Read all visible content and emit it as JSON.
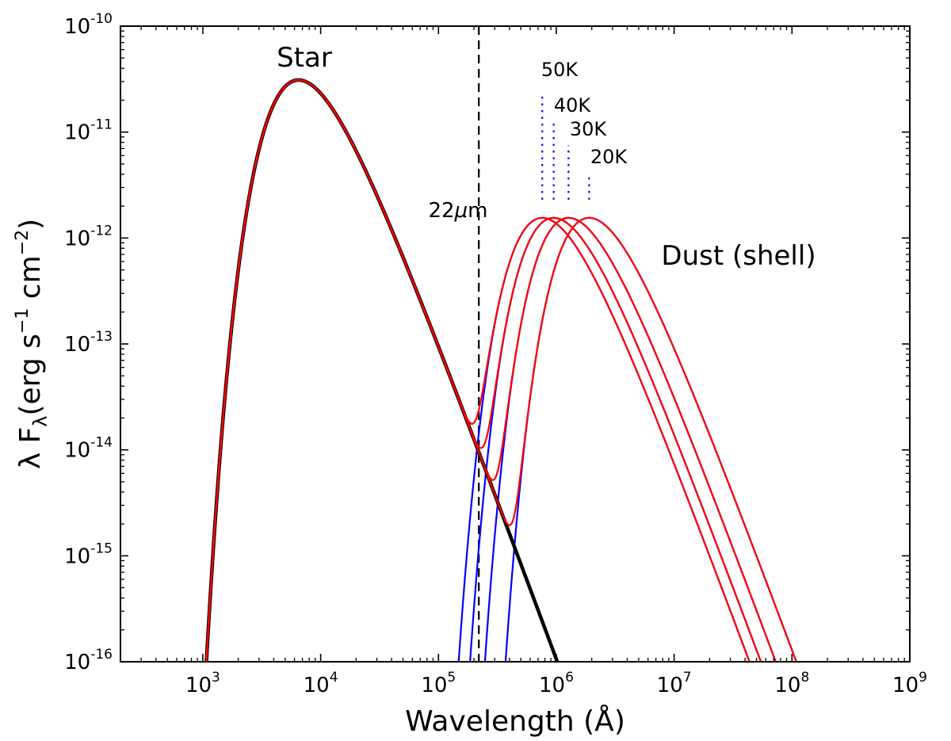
{
  "chart_data": {
    "type": "line",
    "title": "",
    "xlabel": "Wavelength (Å)",
    "ylabel": "λ F",
    "ylabel_sub": "λ",
    "ylabel_units": "(erg s",
    "ylabel_units_exp1": "−1",
    "ylabel_units_mid": " cm",
    "ylabel_units_exp2": "−2",
    "ylabel_units_end": ")",
    "xscale": "log",
    "yscale": "log",
    "xlim": [
      200,
      1000000000
    ],
    "ylim": [
      1e-16,
      1e-10
    ],
    "x_ticks": [
      {
        "base": "10",
        "exp": "3",
        "value": 1000
      },
      {
        "base": "10",
        "exp": "4",
        "value": 10000
      },
      {
        "base": "10",
        "exp": "5",
        "value": 100000
      },
      {
        "base": "10",
        "exp": "6",
        "value": 1000000
      },
      {
        "base": "10",
        "exp": "7",
        "value": 10000000
      },
      {
        "base": "10",
        "exp": "8",
        "value": 100000000
      },
      {
        "base": "10",
        "exp": "9",
        "value": 1000000000
      }
    ],
    "y_ticks": [
      {
        "base": "10",
        "exp": "-16",
        "value": 1e-16
      },
      {
        "base": "10",
        "exp": "-15",
        "value": 1e-15
      },
      {
        "base": "10",
        "exp": "-14",
        "value": 1e-14
      },
      {
        "base": "10",
        "exp": "-13",
        "value": 1e-13
      },
      {
        "base": "10",
        "exp": "-12",
        "value": 1e-12
      },
      {
        "base": "10",
        "exp": "-11",
        "value": 1e-11
      },
      {
        "base": "10",
        "exp": "-10",
        "value": 1e-10
      }
    ],
    "star": {
      "name": "Star",
      "peak_wavelength": 6500,
      "peak_flux": 3.1e-11,
      "color": "#000000",
      "overlay_color": "#e31a1c"
    },
    "dust_peak_flux": 1.55e-12,
    "dust_shells": [
      {
        "label": "50K",
        "temperature": 50,
        "peak_wavelength": 760000,
        "marker_top_flux": 2.3e-11
      },
      {
        "label": "40K",
        "temperature": 40,
        "peak_wavelength": 950000,
        "marker_top_flux": 1.3e-11
      },
      {
        "label": "30K",
        "temperature": 30,
        "peak_wavelength": 1270000,
        "marker_top_flux": 7.5e-12
      },
      {
        "label": "20K",
        "temperature": 20,
        "peak_wavelength": 1900000,
        "marker_top_flux": 4e-12
      }
    ],
    "dust_marker_bottom_flux": 2.3e-12,
    "series_colors": {
      "dust": "#0000ff",
      "total": "#ff0000",
      "marker": "#0000ff",
      "star": "#000000"
    },
    "reference_line": {
      "wavelength": 220000,
      "label_num": "22",
      "label_mu": "μ",
      "label_unit": "m"
    },
    "annotations": {
      "star": "Star",
      "dust": "Dust (shell)"
    }
  }
}
